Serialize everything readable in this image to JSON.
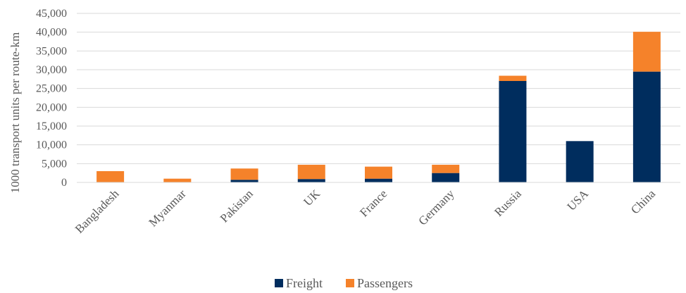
{
  "chart_data": {
    "type": "bar",
    "stacked": true,
    "title": "",
    "xlabel": "",
    "ylabel": "1000 transport units per route-km",
    "ylim": [
      0,
      45000
    ],
    "yticks": [
      "0",
      "5,000",
      "10,000",
      "15,000",
      "20,000",
      "25,000",
      "30,000",
      "35,000",
      "40,000",
      "45,000"
    ],
    "grid": true,
    "legend_position": "bottom",
    "categories": [
      "Bangladesh",
      "Myanmar",
      "Pakistan",
      "UK",
      "France",
      "Germany",
      "Russia",
      "USA",
      "China"
    ],
    "series": [
      {
        "name": "Freight",
        "color": "#002d5e",
        "values": [
          0,
          0,
          700,
          900,
          1000,
          2500,
          27000,
          11000,
          29500
        ]
      },
      {
        "name": "Passengers",
        "color": "#f5822a",
        "values": [
          3000,
          1000,
          3000,
          3800,
          3200,
          2200,
          1400,
          0,
          10600
        ]
      }
    ]
  }
}
